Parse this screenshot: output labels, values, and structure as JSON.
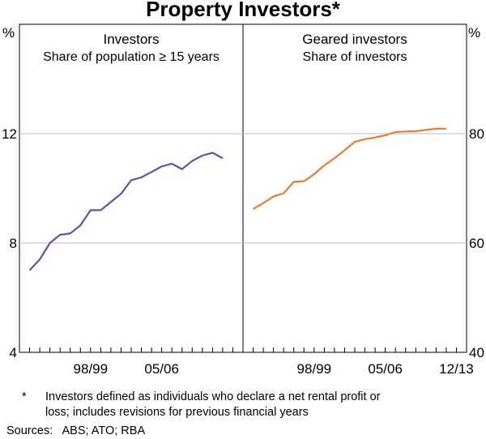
{
  "chart_data": {
    "title": "Property Investors*",
    "type": "line",
    "panels": [
      {
        "title": "Investors",
        "subtitle": "Share of population ≥ 15 years",
        "unit": "%",
        "ylim": [
          4,
          16
        ],
        "yticks": [
          4,
          8,
          12
        ],
        "color": "#6a4ea0",
        "x": [
          1993,
          1994,
          1995,
          1996,
          1997,
          1998,
          1999,
          2000,
          2001,
          2002,
          2003,
          2004,
          2005,
          2006,
          2007,
          2008,
          2009,
          2010,
          2011,
          2012,
          2013
        ],
        "values": [
          7.0,
          7.4,
          8.0,
          8.3,
          8.35,
          8.65,
          9.2,
          9.2,
          9.5,
          9.8,
          10.3,
          10.4,
          10.6,
          10.8,
          10.9,
          10.7,
          11.0,
          11.2,
          11.3,
          11.1,
          null
        ],
        "xticks": [
          {
            "x": 1999,
            "label": "98/99"
          },
          {
            "x": 2006,
            "label": "05/06"
          }
        ]
      },
      {
        "title": "Geared investors",
        "subtitle": "Share of investors",
        "unit": "%",
        "ylim": [
          40,
          100
        ],
        "yticks": [
          40,
          60,
          80
        ],
        "color": "#f07a30",
        "x": [
          1993,
          1994,
          1995,
          1996,
          1997,
          1998,
          1999,
          2000,
          2001,
          2002,
          2003,
          2004,
          2005,
          2006,
          2007,
          2008,
          2009,
          2010,
          2011,
          2012,
          2013
        ],
        "values": [
          66.2,
          67.3,
          68.5,
          69.1,
          71.2,
          71.3,
          72.6,
          74.2,
          75.5,
          77.0,
          78.5,
          79.0,
          79.3,
          79.7,
          80.3,
          80.4,
          80.45,
          80.7,
          80.9,
          80.9,
          null
        ],
        "xticks": [
          {
            "x": 1999,
            "label": "98/99"
          },
          {
            "x": 2006,
            "label": "05/06"
          },
          {
            "x": 2013,
            "label": "12/13"
          }
        ]
      }
    ],
    "xlim": [
      1992,
      2014
    ]
  },
  "footnote": {
    "marker": "*",
    "line1": "Investors defined as individuals who declare a net rental profit or",
    "line2": "loss; includes revisions for previous financial years"
  },
  "sources": "Sources:   ABS; ATO; RBA"
}
